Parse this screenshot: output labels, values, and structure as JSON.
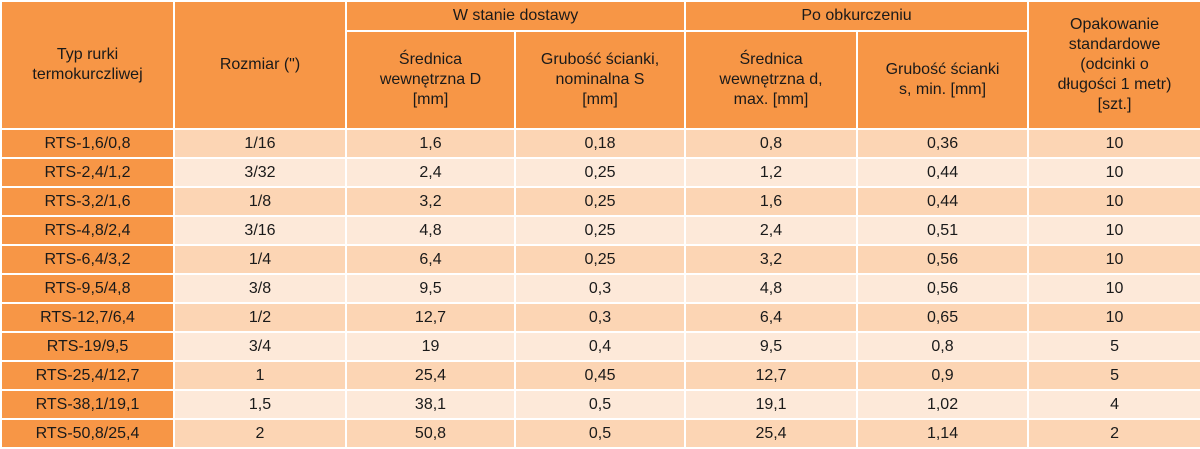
{
  "table": {
    "headers": {
      "type": [
        "Typ rurki",
        "termokurczliwej"
      ],
      "size": "Rozmiar (\")",
      "group_delivery": "W stanie dostawy",
      "group_shrunk": "Po obkurczeniu",
      "inner_d_delivery": [
        "Średnica",
        "wewnętrzna D",
        "[mm]"
      ],
      "wall_delivery": [
        "Grubość ścianki,",
        "nominalna S",
        "[mm]"
      ],
      "inner_d_shrunk": [
        "Średnica",
        "wewnętrzna d,",
        "max. [mm]"
      ],
      "wall_shrunk": [
        "Grubość ścianki",
        "s, min. [mm]"
      ],
      "packaging": [
        "Opakowanie",
        "standardowe",
        "(odcinki o",
        "długości 1 metr)",
        "[szt.]"
      ]
    },
    "rows": [
      [
        "RTS-1,6/0,8",
        "1/16",
        "1,6",
        "0,18",
        "0,8",
        "0,36",
        "10"
      ],
      [
        "RTS-2,4/1,2",
        "3/32",
        "2,4",
        "0,25",
        "1,2",
        "0,44",
        "10"
      ],
      [
        "RTS-3,2/1,6",
        "1/8",
        "3,2",
        "0,25",
        "1,6",
        "0,44",
        "10"
      ],
      [
        "RTS-4,8/2,4",
        "3/16",
        "4,8",
        "0,25",
        "2,4",
        "0,51",
        "10"
      ],
      [
        "RTS-6,4/3,2",
        "1/4",
        "6,4",
        "0,25",
        "3,2",
        "0,56",
        "10"
      ],
      [
        "RTS-9,5/4,8",
        "3/8",
        "9,5",
        "0,3",
        "4,8",
        "0,56",
        "10"
      ],
      [
        "RTS-12,7/6,4",
        "1/2",
        "12,7",
        "0,3",
        "6,4",
        "0,65",
        "10"
      ],
      [
        "RTS-19/9,5",
        "3/4",
        "19",
        "0,4",
        "9,5",
        "0,8",
        "5"
      ],
      [
        "RTS-25,4/12,7",
        "1",
        "25,4",
        "0,45",
        "12,7",
        "0,9",
        "5"
      ],
      [
        "RTS-38,1/19,1",
        "1,5",
        "38,1",
        "0,5",
        "19,1",
        "1,02",
        "4"
      ],
      [
        "RTS-50,8/25,4",
        "2",
        "50,8",
        "0,5",
        "25,4",
        "1,14",
        "2"
      ]
    ]
  },
  "colors": {
    "header_orange": "#f79646",
    "row_dark": "#fcd5b4",
    "row_light": "#fde9d9",
    "border": "#ffffff"
  }
}
